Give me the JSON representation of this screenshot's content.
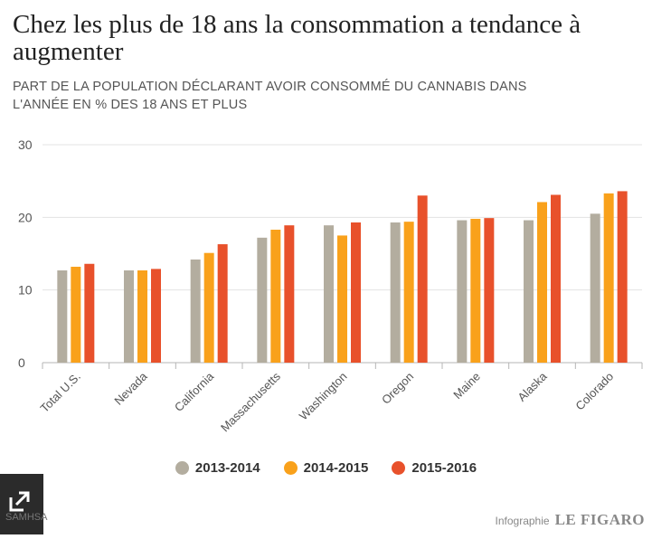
{
  "title": "Chez les plus de 18 ans la consommation a tendance à augmenter",
  "subtitle": "PART DE LA POPULATION DÉCLARANT AVOIR CONSOMMÉ DU CANNABIS DANS L'ANNÉE EN % DES 18 ANS ET PLUS",
  "chart_data": {
    "type": "bar",
    "categories": [
      "Total U.S.",
      "Nevada",
      "California",
      "Massachusetts",
      "Washington",
      "Oregon",
      "Maine",
      "Alaska",
      "Colorado"
    ],
    "series": [
      {
        "name": "2013-2014",
        "color": "#b3ad9f",
        "values": [
          12.7,
          12.7,
          14.2,
          17.2,
          18.9,
          19.3,
          19.6,
          19.6,
          20.5
        ]
      },
      {
        "name": "2014-2015",
        "color": "#f9a11b",
        "values": [
          13.2,
          12.7,
          15.1,
          18.3,
          17.5,
          19.4,
          19.8,
          22.1,
          23.3
        ]
      },
      {
        "name": "2015-2016",
        "color": "#e8512b",
        "values": [
          13.6,
          12.9,
          16.3,
          18.9,
          19.3,
          23.0,
          19.9,
          23.1,
          23.6
        ]
      }
    ],
    "yticks": [
      0,
      10,
      20,
      30
    ],
    "ylim": [
      0,
      30
    ],
    "grid": true,
    "legend": "bottom"
  },
  "footer": {
    "source": "SAMHSA",
    "credit_label": "Infographie",
    "credit_brand": "LE FIGARO"
  },
  "icons": {
    "expand": "expand-icon"
  }
}
